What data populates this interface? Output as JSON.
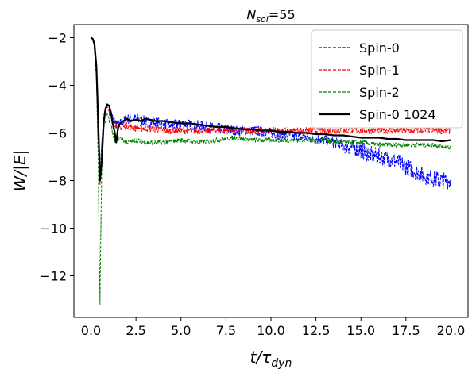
{
  "chart_data": {
    "type": "line",
    "title_main": "N",
    "title_sub": "sol",
    "title_tail": "=55",
    "xlabel_main": "t/τ",
    "xlabel_sub": "dyn",
    "ylabel": "W/|E|",
    "xlim": [
      -0.95,
      20.95
    ],
    "ylim": [
      -13.75,
      -1.45
    ],
    "x_ticks": [
      0.0,
      2.5,
      5.0,
      7.5,
      10.0,
      12.5,
      15.0,
      17.5,
      20.0
    ],
    "x_tick_labels": [
      "0.0",
      "2.5",
      "5.0",
      "7.5",
      "10.0",
      "12.5",
      "15.0",
      "17.5",
      "20.0"
    ],
    "y_ticks": [
      -12,
      -10,
      -8,
      -6,
      -4,
      -2
    ],
    "y_tick_labels": [
      "−12",
      "−10",
      "−8",
      "−6",
      "−4",
      "−2"
    ],
    "grid": false,
    "legend_position": "top-right",
    "series": [
      {
        "name": "Spin-0",
        "color": "#0000ff",
        "style": "dashed",
        "noise": 0.22,
        "x": [
          0.0,
          0.15,
          0.3,
          0.4,
          0.5,
          0.55,
          0.7,
          0.9,
          1.0,
          1.2,
          1.5,
          2.0,
          2.5,
          3.0,
          4.0,
          4.5,
          5.0,
          6.0,
          7.0,
          8.0,
          9.0,
          10.0,
          11.0,
          12.0,
          13.0,
          14.0,
          15.0,
          15.5,
          16.0,
          16.5,
          17.0,
          17.5,
          18.0,
          18.5,
          19.0,
          19.5,
          20.0
        ],
        "y": [
          -2.0,
          -2.1,
          -3.5,
          -6.5,
          -8.1,
          -7.0,
          -5.3,
          -4.8,
          -4.9,
          -5.4,
          -5.7,
          -5.4,
          -5.4,
          -5.5,
          -5.6,
          -5.7,
          -5.6,
          -5.7,
          -5.8,
          -5.9,
          -5.9,
          -6.0,
          -6.1,
          -6.2,
          -6.3,
          -6.5,
          -6.7,
          -6.9,
          -7.0,
          -7.1,
          -7.2,
          -7.4,
          -7.6,
          -7.8,
          -7.9,
          -8.0,
          -8.0
        ]
      },
      {
        "name": "Spin-1",
        "color": "#ff0000",
        "style": "dashed",
        "noise": 0.14,
        "x": [
          0.0,
          0.15,
          0.3,
          0.4,
          0.5,
          0.55,
          0.7,
          0.9,
          1.0,
          1.3,
          1.6,
          2.0,
          2.5,
          3.0,
          4.0,
          5.0,
          6.0,
          7.0,
          8.0,
          9.0,
          10.0,
          11.0,
          12.0,
          13.0,
          14.0,
          15.0,
          16.0,
          17.0,
          18.0,
          19.0,
          20.0
        ],
        "y": [
          -2.0,
          -2.1,
          -3.6,
          -6.8,
          -8.2,
          -7.2,
          -5.4,
          -4.9,
          -5.1,
          -5.6,
          -5.8,
          -5.7,
          -5.8,
          -5.8,
          -5.9,
          -5.9,
          -5.9,
          -5.9,
          -5.9,
          -5.9,
          -5.9,
          -5.9,
          -5.9,
          -5.9,
          -5.9,
          -5.9,
          -5.9,
          -5.9,
          -5.9,
          -5.9,
          -5.9
        ]
      },
      {
        "name": "Spin-2",
        "color": "#008000",
        "style": "dashed",
        "noise": 0.1,
        "x": [
          0.0,
          0.15,
          0.3,
          0.4,
          0.45,
          0.5,
          0.55,
          0.6,
          0.7,
          0.9,
          1.0,
          1.3,
          1.6,
          2.0,
          2.5,
          3.0,
          4.0,
          5.0,
          6.0,
          7.0,
          8.0,
          9.0,
          10.0,
          11.0,
          12.0,
          13.0,
          14.0,
          15.0,
          16.0,
          17.0,
          18.0,
          19.0,
          20.0
        ],
        "y": [
          -2.0,
          -2.1,
          -3.6,
          -7.0,
          -10.5,
          -13.2,
          -10.0,
          -7.5,
          -5.8,
          -5.2,
          -5.4,
          -6.3,
          -6.2,
          -6.4,
          -6.3,
          -6.4,
          -6.4,
          -6.3,
          -6.4,
          -6.3,
          -6.2,
          -6.3,
          -6.3,
          -6.3,
          -6.3,
          -6.3,
          -6.4,
          -6.4,
          -6.5,
          -6.5,
          -6.5,
          -6.5,
          -6.6
        ]
      },
      {
        "name": "Spin-0 1024",
        "color": "#000000",
        "style": "solid",
        "noise": 0.0,
        "x": [
          0.0,
          0.1,
          0.2,
          0.3,
          0.4,
          0.5,
          0.6,
          0.7,
          0.8,
          0.9,
          1.0,
          1.1,
          1.2,
          1.3,
          1.4,
          1.5,
          1.6,
          1.8,
          2.0,
          2.2,
          2.5,
          2.8,
          3.0,
          3.3,
          3.6,
          4.0,
          4.5,
          5.0,
          5.5,
          6.0,
          6.5,
          7.0,
          7.5,
          8.0,
          8.5,
          9.0,
          9.5,
          10.0,
          10.5,
          11.0,
          11.5,
          12.0,
          12.5,
          13.0,
          13.5,
          14.0,
          14.5,
          15.0,
          15.5,
          16.0,
          16.5,
          17.0,
          17.5,
          18.0,
          18.5,
          19.0,
          19.5,
          20.0
        ],
        "y": [
          -2.0,
          -2.05,
          -2.3,
          -3.2,
          -5.5,
          -8.0,
          -7.2,
          -5.6,
          -5.0,
          -4.8,
          -4.85,
          -5.1,
          -5.6,
          -5.9,
          -6.4,
          -5.8,
          -5.6,
          -5.5,
          -5.4,
          -5.5,
          -5.45,
          -5.5,
          -5.4,
          -5.45,
          -5.5,
          -5.5,
          -5.55,
          -5.6,
          -5.6,
          -5.65,
          -5.7,
          -5.75,
          -5.75,
          -5.8,
          -5.85,
          -5.85,
          -5.9,
          -5.9,
          -5.95,
          -5.95,
          -6.0,
          -6.0,
          -6.05,
          -6.05,
          -6.1,
          -6.1,
          -6.15,
          -6.2,
          -6.2,
          -6.2,
          -6.25,
          -6.25,
          -6.3,
          -6.3,
          -6.3,
          -6.3,
          -6.35,
          -6.3
        ]
      }
    ]
  }
}
